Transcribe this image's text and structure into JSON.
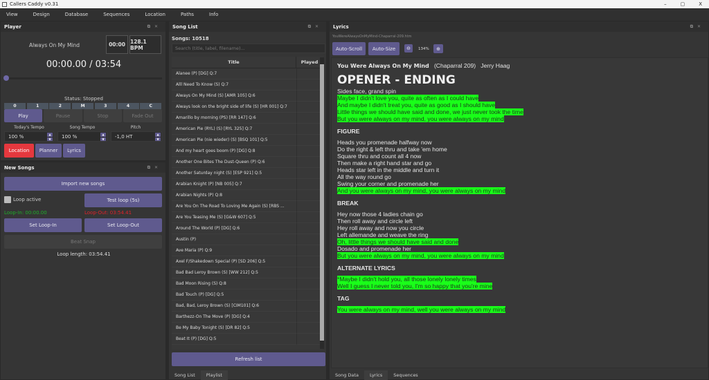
{
  "app": {
    "title": "Callers Caddy v0.31",
    "window_controls": [
      "–",
      "▢",
      "X"
    ]
  },
  "menu": [
    "View",
    "Design",
    "Database",
    "Sequences",
    "Location",
    "Paths",
    "Info"
  ],
  "player": {
    "title": "Player",
    "song": "Always On My Mind",
    "time_box": "00:00",
    "bpm": "128.1 BPM",
    "position": "00:00.00 / 03:54",
    "progress": 0,
    "segments": [
      "0",
      "1",
      "2",
      "M",
      "3",
      "4",
      "C"
    ],
    "status": "Status: Stopped",
    "transport": [
      "Play",
      "Pause",
      "Stop",
      "Fade Out"
    ],
    "labels": [
      "Today's Tempo",
      "Song Tempo",
      "Pitch"
    ],
    "values": [
      "100 %",
      "100 %",
      "-1,0 HT"
    ],
    "nav": [
      "Location",
      "Planner",
      "Lyrics"
    ]
  },
  "new_songs": {
    "title": "New Songs",
    "import": "Import new songs",
    "loop_active": "Loop active",
    "loop_checked": false,
    "test_loop": "Test loop (5s)",
    "loop_in": "Loop-In: 00:00.00",
    "loop_out": "Loop-Out: 03:54.41",
    "set_in": "Set Loop-In",
    "set_out": "Set Loop-Out",
    "beat_snap": "Beat Snap",
    "loop_length": "Loop length: 03:54.41",
    "colors": {
      "loop_in": "#1fae2a",
      "loop_out": "#e0222a"
    }
  },
  "song_list": {
    "title": "Song List",
    "count": "Songs: 10518",
    "search_placeholder": "Search (title, label, filename)...",
    "columns": [
      "Title",
      "Played"
    ],
    "rows": [
      "Alanee  (P)  [DG]  Q:7",
      "Alll Need To Know  (S)  Q:7",
      "Always On My Mind  (S)  [AMR 105]  Q:6",
      "Always look on the bright side of life  (S)  [HR 001]  Q:7",
      "Amarillo by morning  (PS)  [RR 147]  Q:6",
      "American Pie (RYL)  (S)  [RYL 325]  Q:7",
      "American Pie (nie wieder)  (S)  [BSQ 101]  Q:5",
      "And my heart goes boom  (P)  [DG]  Q:8",
      "Another One Bites The Dust-Queen  (P)  Q:6",
      "Another Saturday night  (S)  [ESP 921]  Q:5",
      "Arabian Knight  (P)  [NB 005]  Q:7",
      "Arabian Nights  (P)  Q:8",
      "Are You On The Road To Loving Me Again  (S)  [RBS ...",
      "Are You Teasing Me  (S)  [G&W 607]  Q:5",
      "Around The World  (P)  [DG]  Q:6",
      "Austin  (P)",
      "Ave Maria  (P)  Q:9",
      "Axel F/Shakedown Special  (P)  [SD 206]  Q:5",
      "Bad Bad Leroy Brown  (S)  [WW 212]  Q:5",
      "Bad Moon Rising  (S)  Q:8",
      "Bad Touch  (P)  [DG]  Q:5",
      "Bad, Bad, Leroy Brown  (S)  [CIM101]  Q:6",
      "Barthezz-On The Move  (P)  [DG]  Q:4",
      "Be My Baby Tonight  (S)  [DR 82]  Q:5",
      "Beat It  (P)  [DG]  Q:5"
    ],
    "refresh": "Refresh list",
    "tabs": [
      "Song List",
      "Playlist"
    ]
  },
  "lyrics": {
    "title": "Lyrics",
    "file": "YouWereAlwaysOnMyMind-Chaparral-209.htm",
    "auto_scroll": "Auto-Scroll",
    "auto_size": "Auto-Size",
    "zoom": "134%",
    "song_title": "You Were Always On My Mind",
    "label": "(Chaparral 209)",
    "artist": "Jerry Haag",
    "heading": "OPENER - ENDING",
    "sections": [
      {
        "name": "",
        "lines": [
          {
            "t": "Sides face, grand spin",
            "h": false
          },
          {
            "t": "Maybe I didn't love you, quite as often as I could have",
            "h": true
          },
          {
            "t": "And maybe I didn't treat you, quite as good as I should have",
            "h": true
          },
          {
            "t": "Little things we should have said and done, we just never took the time",
            "h": true
          },
          {
            "t": "But you were always on my mind, you were always on my mind",
            "h": true
          }
        ]
      },
      {
        "name": "FIGURE",
        "lines": [
          {
            "t": "Heads you promenade halfway now",
            "h": false
          },
          {
            "t": "Do the right & left thru and take 'em home",
            "h": false
          },
          {
            "t": "Square thru and count all 4 now",
            "h": false
          },
          {
            "t": "Then make a right hand star and go",
            "h": false
          },
          {
            "t": "Heads star left in the middle and turn it",
            "h": false
          },
          {
            "t": "All the way round go",
            "h": false
          },
          {
            "t": "Swing your corner and promenade her",
            "h": false
          },
          {
            "t": "And you were always on my mind, you were always on my mind",
            "h": true
          }
        ]
      },
      {
        "name": "BREAK",
        "lines": [
          {
            "t": "Hey now those 4 ladies chain go",
            "h": false
          },
          {
            "t": "Then roll away and circle left",
            "h": false
          },
          {
            "t": "Hey roll away and now you circle",
            "h": false
          },
          {
            "t": "Left allemande and weave the ring",
            "h": false
          },
          {
            "t": "Oh, little things we should have said and done",
            "h": true
          },
          {
            "t": "Dosado and promenade her",
            "h": false
          },
          {
            "t": "But you were always on my mind, you were always on my mind",
            "h": true
          }
        ]
      },
      {
        "name": "ALTERNATE LYRICS",
        "lines": [
          {
            "t": "*Maybe I didn't hold you, all those lonely lonely times",
            "h": true
          },
          {
            "t": "Well I guess I never told you, I'm so happy that you're mine",
            "h": true
          }
        ]
      },
      {
        "name": "TAG",
        "lines": [
          {
            "t": "You were always on my mind, well you were always on my mind",
            "h": true
          }
        ]
      }
    ],
    "highlight_color": "#19ff19",
    "tabs": [
      "Song Data",
      "Lyrics",
      "Sequences"
    ]
  },
  "colors": {
    "accent": "#5f5a8e",
    "danger": "#e5383e",
    "background": "#353535"
  }
}
